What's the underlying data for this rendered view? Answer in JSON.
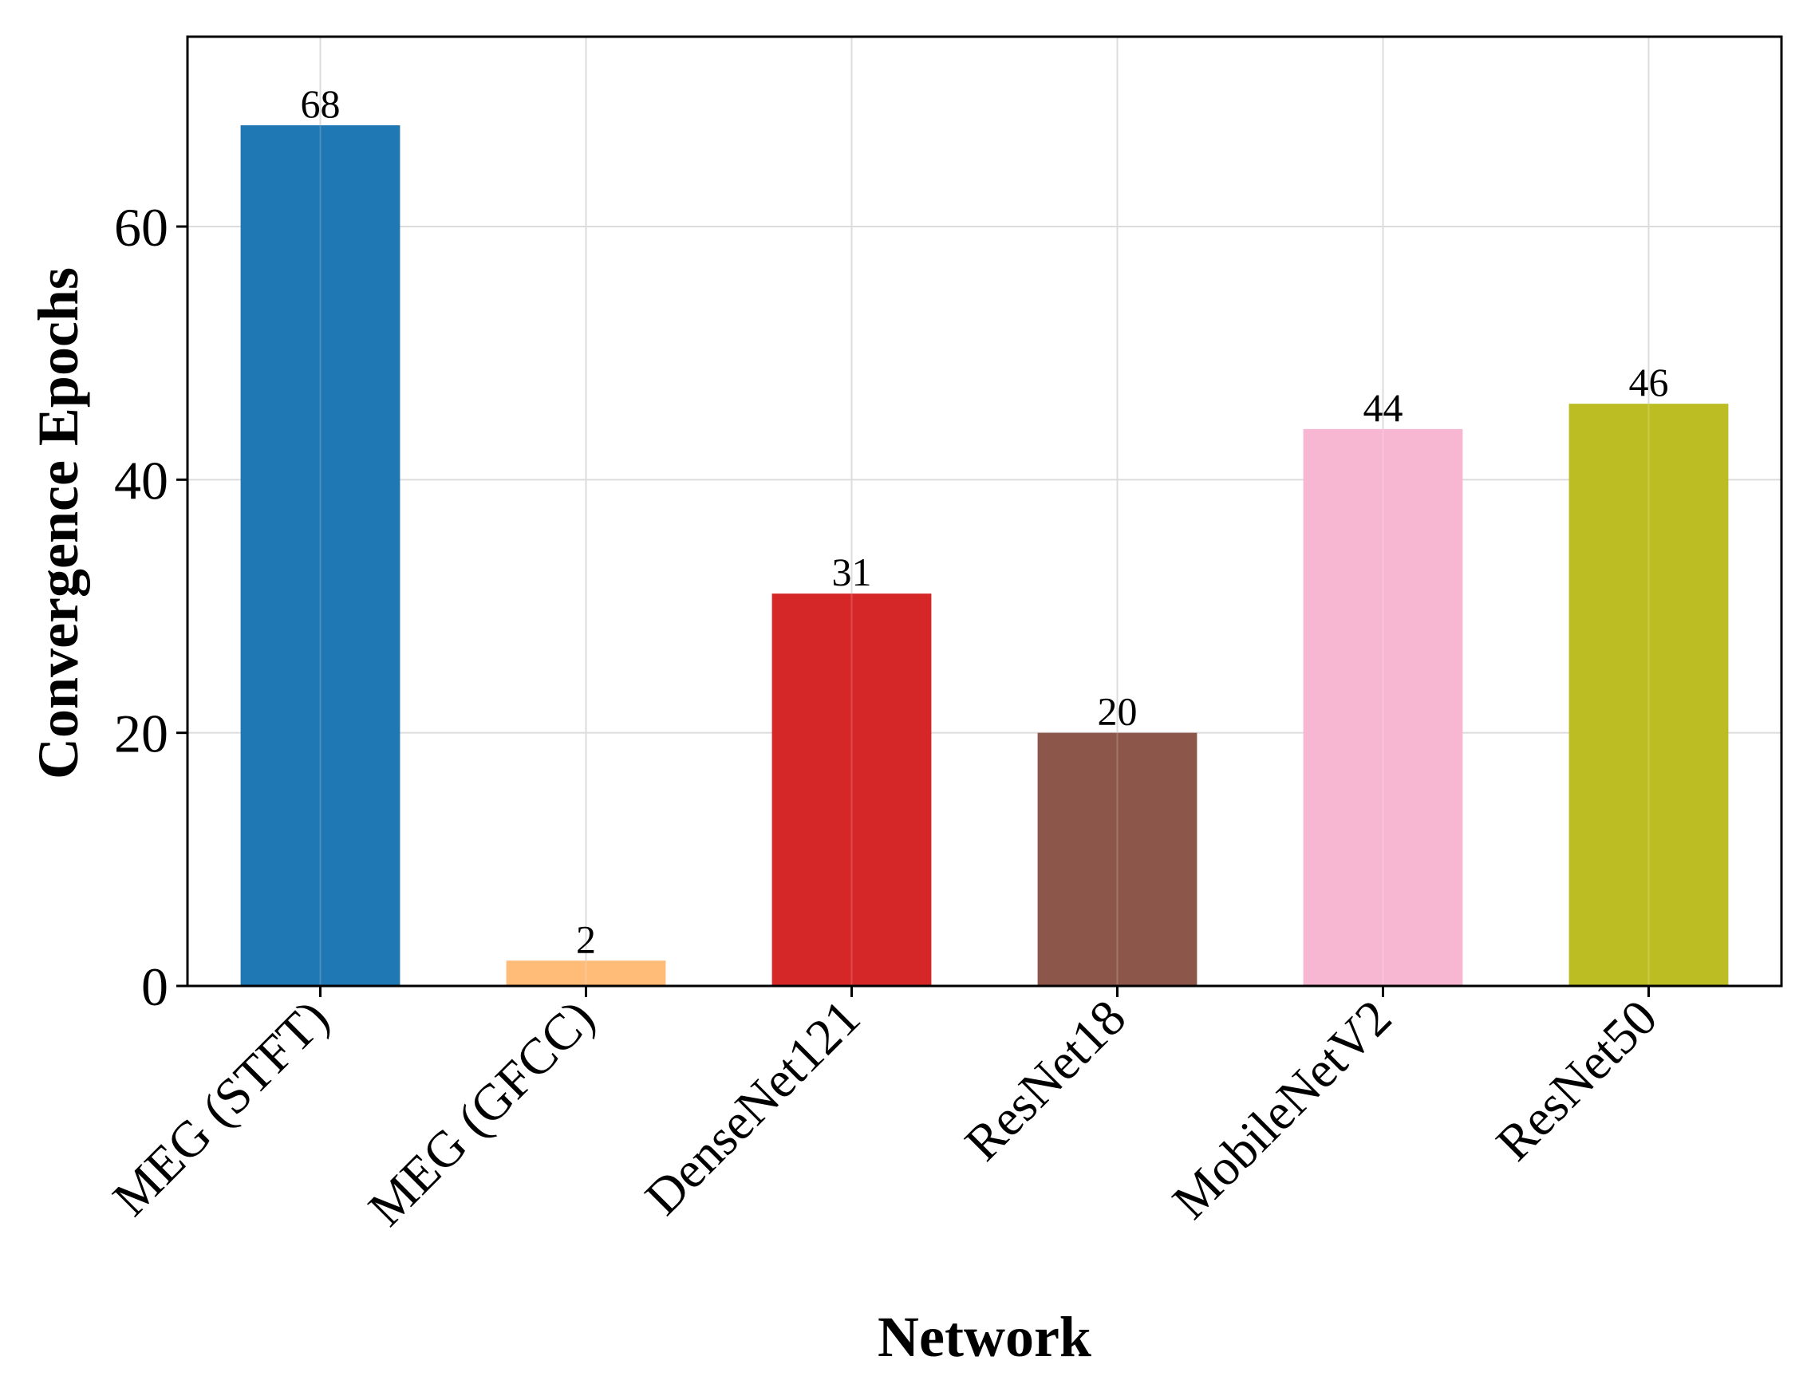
{
  "chart_data": {
    "type": "bar",
    "xlabel": "Network",
    "ylabel": "Convergence Epochs",
    "categories": [
      "MEG (STFT)",
      "MEG (GFCC)",
      "DenseNet121",
      "ResNet18",
      "MobileNetV2",
      "ResNet50"
    ],
    "values": [
      68,
      2,
      31,
      20,
      44,
      46
    ],
    "data_labels": [
      "68",
      "2",
      "31",
      "20",
      "44",
      "46"
    ],
    "colors": [
      "#1f77b4",
      "#ffbb78",
      "#d62728",
      "#8c564b",
      "#f7b6d2",
      "#bcbd22"
    ],
    "yticks": [
      0,
      20,
      40,
      60
    ],
    "ytick_labels": [
      "0",
      "20",
      "40",
      "60"
    ],
    "ylim": [
      0,
      75
    ],
    "grid": true,
    "legend": "none"
  }
}
